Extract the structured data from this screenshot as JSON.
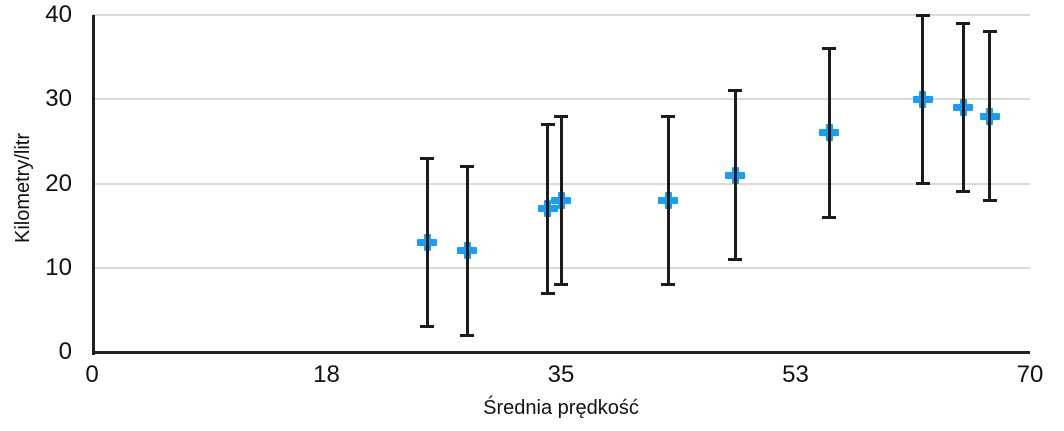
{
  "chart_data": {
    "type": "scatter",
    "title": "",
    "xlabel": "Średnia prędkość",
    "ylabel": "Kilometry/litr",
    "xlim": [
      0,
      70
    ],
    "ylim": [
      0,
      40
    ],
    "grid": "horizontal-only",
    "legend": "none",
    "x_ticks": [
      {
        "value": 0,
        "label": "0"
      },
      {
        "value": 17.5,
        "label": "18"
      },
      {
        "value": 35,
        "label": "35"
      },
      {
        "value": 52.5,
        "label": "53"
      },
      {
        "value": 70,
        "label": "70"
      }
    ],
    "y_ticks": [
      {
        "value": 0,
        "label": "0"
      },
      {
        "value": 10,
        "label": "10"
      },
      {
        "value": 20,
        "label": "20"
      },
      {
        "value": 30,
        "label": "30"
      },
      {
        "value": 40,
        "label": "40"
      }
    ],
    "marker": {
      "shape": "plus",
      "color": "#1b9df3"
    },
    "error_bars": {
      "type": "symmetric",
      "amount": 10,
      "color": "#1c1c1c"
    },
    "points": [
      {
        "x": 25,
        "y": 13,
        "y_min": 3,
        "y_max": 23
      },
      {
        "x": 28,
        "y": 12,
        "y_min": 2,
        "y_max": 22
      },
      {
        "x": 34,
        "y": 17,
        "y_min": 7,
        "y_max": 27
      },
      {
        "x": 35,
        "y": 18,
        "y_min": 8,
        "y_max": 28
      },
      {
        "x": 43,
        "y": 18,
        "y_min": 8,
        "y_max": 28
      },
      {
        "x": 48,
        "y": 21,
        "y_min": 11,
        "y_max": 31
      },
      {
        "x": 55,
        "y": 26,
        "y_min": 16,
        "y_max": 36
      },
      {
        "x": 62,
        "y": 30,
        "y_min": 20,
        "y_max": 40
      },
      {
        "x": 65,
        "y": 29,
        "y_min": 19,
        "y_max": 39
      },
      {
        "x": 67,
        "y": 28,
        "y_min": 18,
        "y_max": 38
      }
    ],
    "colors": {
      "gridline": "#d9d9d9",
      "axis_line": "#1f1f1f",
      "text": "#111111"
    }
  }
}
